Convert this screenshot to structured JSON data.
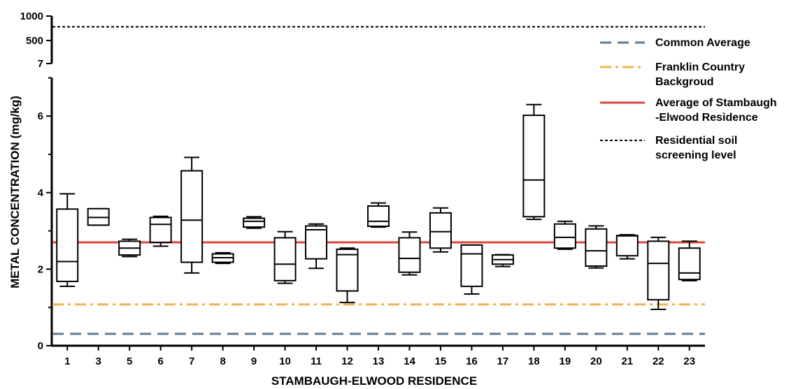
{
  "chart_data": {
    "type": "boxplot",
    "xlabel": "STAMBAUGH-ELWOOD RESIDENCE",
    "ylabel": "METAL CONCENTRATION (mg/kg)",
    "y_axis": {
      "broken": true,
      "lower_segment": {
        "range": [
          0,
          7
        ],
        "ticks": [
          "0",
          "2",
          "4",
          "6"
        ]
      },
      "upper_segment": {
        "ticks": [
          "7",
          "500",
          "1000"
        ]
      }
    },
    "categories": [
      "1",
      "3",
      "5",
      "6",
      "7",
      "8",
      "9",
      "10",
      "11",
      "12",
      "13",
      "14",
      "15",
      "16",
      "17",
      "18",
      "19",
      "20",
      "21",
      "22",
      "23"
    ],
    "boxes": [
      {
        "min": 1.55,
        "q1": 1.68,
        "median": 2.2,
        "q3": 3.57,
        "max": 3.97
      },
      {
        "min": 3.15,
        "q1": 3.15,
        "median": 3.35,
        "q3": 3.58,
        "max": 3.58
      },
      {
        "min": 2.33,
        "q1": 2.37,
        "median": 2.55,
        "q3": 2.73,
        "max": 2.78
      },
      {
        "min": 2.6,
        "q1": 2.7,
        "median": 3.17,
        "q3": 3.35,
        "max": 3.38
      },
      {
        "min": 1.9,
        "q1": 2.18,
        "median": 3.28,
        "q3": 4.57,
        "max": 4.92
      },
      {
        "min": 2.15,
        "q1": 2.18,
        "median": 2.3,
        "q3": 2.4,
        "max": 2.43
      },
      {
        "min": 3.07,
        "q1": 3.1,
        "median": 3.25,
        "q3": 3.33,
        "max": 3.37
      },
      {
        "min": 1.63,
        "q1": 1.7,
        "median": 2.13,
        "q3": 2.82,
        "max": 2.98
      },
      {
        "min": 2.02,
        "q1": 2.27,
        "median": 3.03,
        "q3": 3.13,
        "max": 3.18
      },
      {
        "min": 1.13,
        "q1": 1.43,
        "median": 2.38,
        "q3": 2.52,
        "max": 2.55
      },
      {
        "min": 3.1,
        "q1": 3.12,
        "median": 3.25,
        "q3": 3.65,
        "max": 3.73
      },
      {
        "min": 1.85,
        "q1": 1.92,
        "median": 2.28,
        "q3": 2.82,
        "max": 2.97
      },
      {
        "min": 2.45,
        "q1": 2.55,
        "median": 2.98,
        "q3": 3.47,
        "max": 3.6
      },
      {
        "min": 1.35,
        "q1": 1.55,
        "median": 2.4,
        "q3": 2.63,
        "max": 2.63
      },
      {
        "min": 2.07,
        "q1": 2.13,
        "median": 2.25,
        "q3": 2.37,
        "max": 2.38
      },
      {
        "min": 3.3,
        "q1": 3.37,
        "median": 4.33,
        "q3": 6.02,
        "max": 6.3
      },
      {
        "min": 2.52,
        "q1": 2.55,
        "median": 2.83,
        "q3": 3.18,
        "max": 3.25
      },
      {
        "min": 2.03,
        "q1": 2.08,
        "median": 2.48,
        "q3": 3.05,
        "max": 3.13
      },
      {
        "min": 2.27,
        "q1": 2.35,
        "median": 2.87,
        "q3": 2.88,
        "max": 2.9
      },
      {
        "min": 0.95,
        "q1": 1.2,
        "median": 2.15,
        "q3": 2.73,
        "max": 2.83
      },
      {
        "min": 1.7,
        "q1": 1.73,
        "median": 1.9,
        "q3": 2.55,
        "max": 2.73
      }
    ],
    "reference_lines": [
      {
        "name": "Common Average",
        "value": 0.31,
        "color": "#5b7c99",
        "style": "dashed"
      },
      {
        "name": "Franklin Country Backgroud",
        "value": 1.08,
        "color": "#f0b54a",
        "style": "dash-dot"
      },
      {
        "name": "Average of Stambaugh -Elwood Residence",
        "value": 2.7,
        "color": "#d9473a",
        "style": "solid"
      },
      {
        "name": "Residential soil screening level",
        "value": 780,
        "color": "#000000",
        "style": "dotted"
      }
    ],
    "legend": {
      "position": "top-right",
      "entries": [
        {
          "lines": [
            "Common Average"
          ],
          "color": "#5b7c99",
          "style": "dashed"
        },
        {
          "lines": [
            "Franklin Country",
            "Backgroud"
          ],
          "color": "#f0b54a",
          "style": "dash-dot"
        },
        {
          "lines": [
            "Average of Stambaugh",
            "-Elwood Residence"
          ],
          "color": "#d9473a",
          "style": "solid"
        },
        {
          "lines": [
            "Residential soil",
            "screening level"
          ],
          "color": "#000000",
          "style": "dotted"
        }
      ]
    }
  }
}
